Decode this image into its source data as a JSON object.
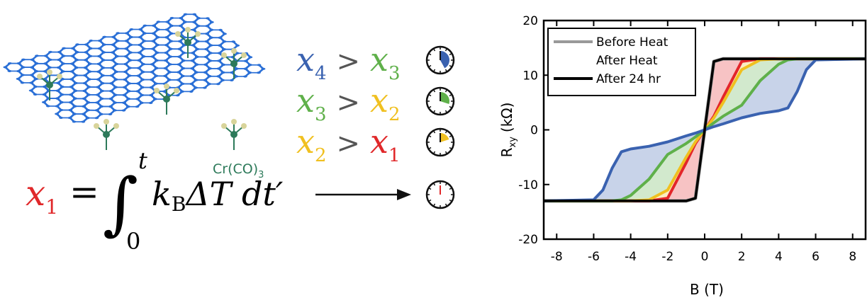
{
  "diagram": {
    "ligand_label": {
      "text": "Cr(CO)",
      "sub": "3"
    },
    "inequalities": [
      {
        "left": "x",
        "left_sub": "4",
        "left_color": "#3a62b0",
        "op": ">",
        "right": "x",
        "right_sub": "3",
        "right_color": "#5fb04a"
      },
      {
        "left": "x",
        "left_sub": "3",
        "left_color": "#5fb04a",
        "op": ">",
        "right": "x",
        "right_sub": "2",
        "right_color": "#f0c020"
      },
      {
        "left": "x",
        "left_sub": "2",
        "left_color": "#f0c020",
        "op": ">",
        "right": "x",
        "right_sub": "1",
        "right_color": "#e0282a"
      }
    ],
    "equation": {
      "lhs": "x",
      "lhs_sub": "1",
      "eq": "=",
      "integral": "∫",
      "upper": "t",
      "lower": "0",
      "k": "k",
      "k_sub": "B",
      "rest": "ΔT dt′"
    }
  },
  "chart_data": {
    "type": "line",
    "xlabel": "B (T)",
    "ylabel": {
      "symbol": "R",
      "sub": "xy",
      "unit": "(kΩ)"
    },
    "xlim": [
      -8.7,
      8.7
    ],
    "ylim": [
      -20,
      20
    ],
    "xticks": [
      -8,
      -6,
      -4,
      -2,
      0,
      2,
      4,
      6,
      8
    ],
    "yticks": [
      -20,
      -10,
      0,
      10,
      20
    ],
    "legend": "upper left",
    "x": [
      -8.7,
      -6,
      -5.5,
      -5,
      -4.5,
      -4,
      -3,
      -2,
      -1,
      -0.5,
      0,
      0.5,
      1,
      2,
      3,
      4,
      4.5,
      5,
      5.5,
      6,
      8.7
    ],
    "series": [
      {
        "name": "Before Heat",
        "color": "#999999",
        "values": [
          -13,
          -13,
          -13,
          -13,
          -13,
          -13,
          -13,
          -13,
          -13,
          -12.5,
          0,
          12.5,
          13,
          13,
          13,
          13,
          13,
          13,
          13,
          13,
          13
        ]
      },
      {
        "name": "After Heat",
        "colors": [
          "#e3262a",
          "#f0c020",
          "#5fb04a",
          "#3a62b0"
        ],
        "curves": [
          {
            "color": "#e3262a",
            "values": [
              -13,
              -13,
              -13,
              -13,
              -13,
              -13,
              -13,
              -12.5,
              -6,
              -2.5,
              0,
              2.5,
              6,
              12.5,
              13,
              13,
              13,
              13,
              13,
              13,
              13
            ]
          },
          {
            "color": "#f0c020",
            "values": [
              -13,
              -13,
              -13,
              -13,
              -13,
              -13,
              -12.8,
              -11,
              -5,
              -2.2,
              0,
              2.2,
              5,
              11,
              12.8,
              13,
              13,
              13,
              13,
              13,
              13
            ]
          },
          {
            "color": "#5fb04a",
            "values": [
              -13,
              -13,
              -13,
              -13,
              -12.8,
              -12,
              -9,
              -4.5,
              -2.5,
              -1.3,
              0,
              1.3,
              2.5,
              4.5,
              9,
              12,
              12.8,
              13,
              13,
              13,
              13
            ]
          },
          {
            "color": "#3a62b0",
            "values": [
              -13,
              -12.8,
              -11,
              -7,
              -4,
              -3.5,
              -3,
              -2.2,
              -1.1,
              -0.6,
              0,
              0.6,
              1.1,
              2.2,
              3,
              3.5,
              4,
              7,
              11,
              12.8,
              13
            ]
          }
        ]
      },
      {
        "name": "After 24 hr",
        "color": "#000000",
        "values": [
          -13,
          -13,
          -13,
          -13,
          -13,
          -13,
          -13,
          -13,
          -13,
          -12.5,
          0,
          12.5,
          13,
          13,
          13,
          13,
          13,
          13,
          13,
          13,
          13
        ]
      }
    ]
  }
}
